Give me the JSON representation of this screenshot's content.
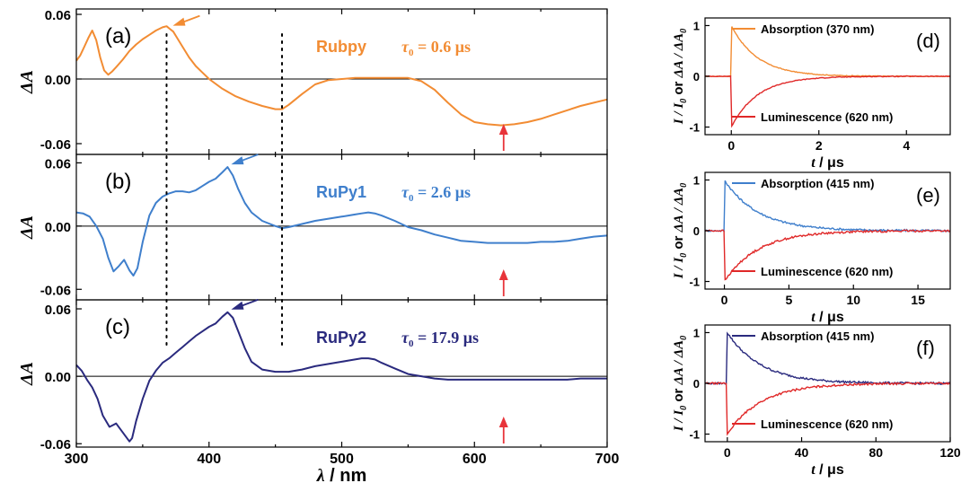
{
  "colors": {
    "rubpy": "#F28C33",
    "rupy1": "#3F7FCC",
    "rupy2": "#2A2A7E",
    "marker_red": "#E8343A",
    "luminescence": "#E02828",
    "axis": "#000000",
    "zero_line": "#000000"
  },
  "chart_data": [
    {
      "type": "line",
      "panel": "(a)",
      "compound": "Rubpy",
      "tau_label": "τ",
      "tau_sub": "0",
      "tau_value": "= 0.6 μs",
      "ylabel": "ΔA",
      "xlim": [
        300,
        700
      ],
      "ylim": [
        -0.07,
        0.065
      ],
      "yticks": [
        "0.06",
        "0.00",
        "-0.06"
      ],
      "ytick_values": [
        0.06,
        0.0,
        -0.06
      ],
      "show_xticklabels": false,
      "arrow_peak_nm": 370,
      "arrow_red_nm": 622,
      "series": [
        {
          "color": "#F28C33",
          "x": [
            300,
            303,
            306,
            309,
            312,
            315,
            318,
            321,
            324,
            327,
            330,
            335,
            340,
            345,
            350,
            355,
            360,
            365,
            368,
            370,
            373,
            376,
            380,
            385,
            390,
            395,
            400,
            410,
            420,
            430,
            440,
            450,
            455,
            460,
            470,
            480,
            490,
            500,
            510,
            520,
            530,
            540,
            550,
            560,
            570,
            580,
            590,
            600,
            610,
            620,
            630,
            640,
            650,
            660,
            670,
            680,
            690,
            700
          ],
          "y": [
            0.017,
            0.022,
            0.03,
            0.038,
            0.045,
            0.036,
            0.02,
            0.008,
            0.004,
            0.007,
            0.011,
            0.018,
            0.026,
            0.032,
            0.037,
            0.041,
            0.045,
            0.048,
            0.049,
            0.047,
            0.044,
            0.038,
            0.03,
            0.02,
            0.012,
            0.006,
            0.0,
            -0.009,
            -0.016,
            -0.021,
            -0.025,
            -0.028,
            -0.028,
            -0.024,
            -0.014,
            -0.005,
            -0.001,
            0.0,
            0.001,
            0.001,
            0.001,
            0.001,
            0.001,
            -0.002,
            -0.01,
            -0.022,
            -0.033,
            -0.04,
            -0.042,
            -0.043,
            -0.042,
            -0.04,
            -0.037,
            -0.033,
            -0.029,
            -0.025,
            -0.022,
            -0.019
          ]
        }
      ]
    },
    {
      "type": "line",
      "panel": "(b)",
      "compound": "RuPy1",
      "tau_label": "τ",
      "tau_sub": "0",
      "tau_value": "= 2.6 μs",
      "ylabel": "ΔA",
      "xlim": [
        300,
        700
      ],
      "ylim": [
        -0.07,
        0.068
      ],
      "yticks": [
        "0.06",
        "0.00",
        "-0.06"
      ],
      "ytick_values": [
        0.06,
        0.0,
        -0.06
      ],
      "show_xticklabels": false,
      "arrow_peak_nm": 414,
      "arrow_red_nm": 622,
      "series": [
        {
          "color": "#3F7FCC",
          "x": [
            300,
            305,
            310,
            315,
            320,
            324,
            328,
            332,
            336,
            340,
            343,
            346,
            350,
            355,
            360,
            365,
            370,
            375,
            380,
            385,
            390,
            395,
            400,
            405,
            410,
            414,
            418,
            422,
            427,
            432,
            440,
            450,
            455,
            460,
            470,
            480,
            490,
            500,
            505,
            510,
            515,
            520,
            525,
            530,
            540,
            550,
            560,
            570,
            580,
            590,
            600,
            610,
            620,
            630,
            640,
            650,
            660,
            670,
            680,
            690,
            700
          ],
          "y": [
            0.013,
            0.012,
            0.009,
            0.0,
            -0.012,
            -0.03,
            -0.043,
            -0.038,
            -0.032,
            -0.042,
            -0.047,
            -0.04,
            -0.015,
            0.01,
            0.022,
            0.028,
            0.031,
            0.033,
            0.033,
            0.032,
            0.034,
            0.038,
            0.042,
            0.045,
            0.051,
            0.056,
            0.048,
            0.035,
            0.022,
            0.013,
            0.005,
            0.0,
            -0.002,
            -0.001,
            0.002,
            0.005,
            0.007,
            0.009,
            0.01,
            0.011,
            0.012,
            0.013,
            0.012,
            0.01,
            0.005,
            -0.001,
            -0.004,
            -0.008,
            -0.011,
            -0.014,
            -0.015,
            -0.016,
            -0.016,
            -0.016,
            -0.016,
            -0.015,
            -0.015,
            -0.014,
            -0.012,
            -0.01,
            -0.009
          ]
        }
      ]
    },
    {
      "type": "line",
      "panel": "(c)",
      "compound": "RuPy2",
      "tau_label": "τ",
      "tau_sub": "0",
      "tau_value": "= 17.9 μs",
      "ylabel": "ΔA",
      "xlim": [
        300,
        700
      ],
      "ylim": [
        -0.063,
        0.068
      ],
      "yticks": [
        "0.06",
        "0.00",
        "-0.06"
      ],
      "ytick_values": [
        0.06,
        0.0,
        -0.06
      ],
      "show_xticklabels": true,
      "xticks": [
        300,
        400,
        500,
        600,
        700
      ],
      "xlabel_var": "λ",
      "xlabel_unit": " / nm",
      "arrow_peak_nm": 414,
      "arrow_red_nm": 622,
      "series": [
        {
          "color": "#2A2A7E",
          "x": [
            300,
            304,
            308,
            312,
            316,
            320,
            325,
            330,
            335,
            340,
            342,
            345,
            350,
            355,
            360,
            365,
            370,
            375,
            380,
            385,
            390,
            395,
            400,
            405,
            410,
            414,
            418,
            422,
            427,
            432,
            440,
            450,
            460,
            470,
            480,
            490,
            500,
            505,
            510,
            515,
            520,
            525,
            530,
            540,
            550,
            560,
            570,
            580,
            590,
            600,
            610,
            620,
            630,
            640,
            650,
            660,
            670,
            680,
            690,
            700
          ],
          "y": [
            0.01,
            0.005,
            -0.003,
            -0.01,
            -0.02,
            -0.035,
            -0.045,
            -0.042,
            -0.05,
            -0.058,
            -0.055,
            -0.04,
            -0.02,
            -0.004,
            0.005,
            0.012,
            0.016,
            0.021,
            0.026,
            0.031,
            0.036,
            0.04,
            0.044,
            0.047,
            0.053,
            0.057,
            0.052,
            0.04,
            0.025,
            0.013,
            0.006,
            0.004,
            0.004,
            0.006,
            0.009,
            0.011,
            0.013,
            0.014,
            0.015,
            0.016,
            0.016,
            0.015,
            0.012,
            0.007,
            0.002,
            0.0,
            -0.002,
            -0.003,
            -0.003,
            -0.003,
            -0.003,
            -0.003,
            -0.003,
            -0.003,
            -0.003,
            -0.003,
            -0.003,
            -0.002,
            -0.002,
            -0.002
          ]
        }
      ]
    },
    {
      "type": "line",
      "panel": "(d)",
      "ylabel_text": "I / I",
      "ylabel_sub": "0",
      "ylabel_or": "  or  ",
      "ylabel_text2": "ΔA / ΔA",
      "ylabel_sub2": "0",
      "xlim": [
        -0.6,
        5
      ],
      "ylim": [
        -1.15,
        1.15
      ],
      "xticks": [
        0,
        2,
        4
      ],
      "yticks": [
        "1",
        "0",
        "-1"
      ],
      "ytick_values": [
        1,
        0,
        -1
      ],
      "xlabel_var": "t",
      "xlabel_unit": " / μs",
      "tau": 0.6,
      "series": [
        {
          "name": "Absorption (370 nm)",
          "color": "#F28C33",
          "sign": 1
        },
        {
          "name": "Luminescence (620 nm)",
          "color": "#E02828",
          "sign": -1
        }
      ]
    },
    {
      "type": "line",
      "panel": "(e)",
      "ylabel_text": "I / I",
      "ylabel_sub": "0",
      "ylabel_or": "  or  ",
      "ylabel_text2": "ΔA / ΔA",
      "ylabel_sub2": "0",
      "xlim": [
        -1.5,
        17.5
      ],
      "ylim": [
        -1.15,
        1.15
      ],
      "xticks": [
        0,
        5,
        10,
        15
      ],
      "yticks": [
        "1",
        "0",
        "-1"
      ],
      "ytick_values": [
        1,
        0,
        -1
      ],
      "xlabel_var": "t",
      "xlabel_unit": " / μs",
      "tau": 2.6,
      "series": [
        {
          "name": "Absorption (415 nm)",
          "color": "#3F7FCC",
          "sign": 1
        },
        {
          "name": "Luminescence (620 nm)",
          "color": "#E02828",
          "sign": -1
        }
      ]
    },
    {
      "type": "line",
      "panel": "(f)",
      "ylabel_text": "I / I",
      "ylabel_sub": "0",
      "ylabel_or": "  or  ",
      "ylabel_text2": "ΔA / ΔA",
      "ylabel_sub2": "0",
      "xlim": [
        -12,
        120
      ],
      "ylim": [
        -1.15,
        1.15
      ],
      "xticks": [
        0,
        40,
        80,
        120
      ],
      "yticks": [
        "1",
        "0",
        "-1"
      ],
      "ytick_values": [
        1,
        0,
        -1
      ],
      "xlabel_var": "t",
      "xlabel_unit": " / μs",
      "tau": 17.9,
      "series": [
        {
          "name": "Absorption (415 nm)",
          "color": "#2A2A7E",
          "sign": 1
        },
        {
          "name": "Luminescence (620 nm)",
          "color": "#E02828",
          "sign": -1
        }
      ]
    }
  ]
}
